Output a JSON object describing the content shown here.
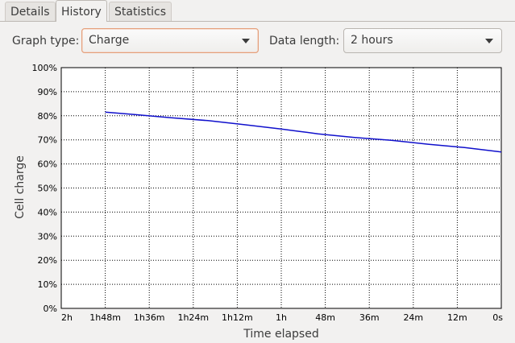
{
  "tabs": [
    {
      "label": "Details",
      "active": false
    },
    {
      "label": "History",
      "active": true
    },
    {
      "label": "Statistics",
      "active": false
    }
  ],
  "controls": {
    "graph_type_label": "Graph type:",
    "graph_type_value": "Charge",
    "data_length_label": "Data length:",
    "data_length_value": "2 hours"
  },
  "colors": {
    "line": "#1010cc",
    "grid": "#000000",
    "plot_bg": "#ffffff"
  },
  "chart_data": {
    "type": "line",
    "xlabel": "Time elapsed",
    "ylabel": "Cell charge",
    "x_ticks": [
      "2h",
      "1h48m",
      "1h36m",
      "1h24m",
      "1h12m",
      "1h",
      "48m",
      "36m",
      "24m",
      "12m",
      "0s"
    ],
    "y_ticks": [
      "0%",
      "10%",
      "20%",
      "30%",
      "40%",
      "50%",
      "60%",
      "70%",
      "80%",
      "90%",
      "100%"
    ],
    "xlim_minutes_before_now": [
      120,
      0
    ],
    "ylim": [
      0,
      100
    ],
    "grid": true,
    "series": [
      {
        "x_minutes_before_now": [
          108,
          100,
          90,
          80,
          70,
          60,
          55,
          50,
          40,
          30,
          20,
          10,
          0
        ],
        "values": [
          81.5,
          80.5,
          79.2,
          78,
          76.3,
          74.5,
          73.5,
          72.5,
          71,
          69.8,
          68.2,
          66.8,
          65
        ]
      }
    ]
  }
}
